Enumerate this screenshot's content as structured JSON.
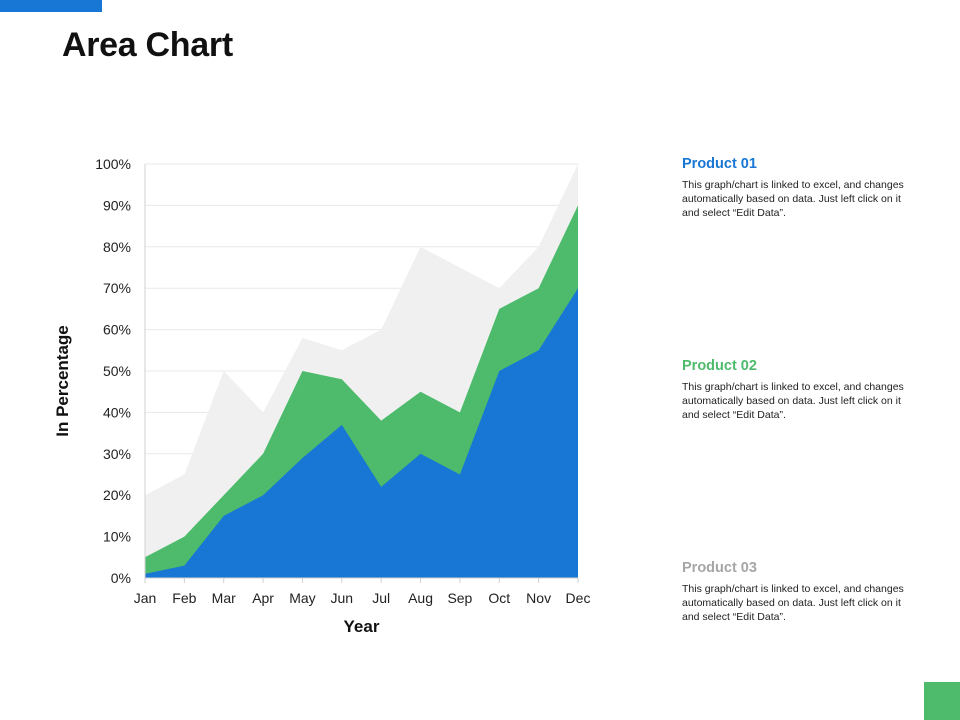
{
  "title": "Area Chart",
  "colors": {
    "accent_blue": "#1877d4",
    "accent_green": "#4dbb6b",
    "product01": "#1877d4",
    "product02": "#4dbb6b",
    "product03": "#f0f0f0",
    "product03_label": "#a6a6a6",
    "gridline": "#e8e8e8",
    "axis": "#d0d0d0"
  },
  "chart_data": {
    "type": "area",
    "stacked": false,
    "categories": [
      "Jan",
      "Feb",
      "Mar",
      "Apr",
      "May",
      "Jun",
      "Jul",
      "Aug",
      "Sep",
      "Oct",
      "Nov",
      "Dec"
    ],
    "series": [
      {
        "name": "Product 03",
        "color": "#f0f0f0",
        "values": [
          20,
          25,
          50,
          40,
          58,
          55,
          60,
          80,
          75,
          70,
          80,
          100
        ]
      },
      {
        "name": "Product 02",
        "color": "#4dbb6b",
        "values": [
          5,
          10,
          20,
          30,
          50,
          48,
          38,
          45,
          40,
          65,
          70,
          90
        ]
      },
      {
        "name": "Product 01",
        "color": "#1877d4",
        "values": [
          1,
          3,
          15,
          20,
          29,
          37,
          22,
          30,
          25,
          50,
          55,
          70
        ]
      }
    ],
    "y_ticks": [
      "0%",
      "10%",
      "20%",
      "30%",
      "40%",
      "50%",
      "60%",
      "70%",
      "80%",
      "90%",
      "100%"
    ],
    "ylim": [
      0,
      100
    ],
    "xlabel": "Year",
    "ylabel": "In Percentage",
    "grid": true,
    "legend": "right"
  },
  "legend_items": [
    {
      "title": "Product 01",
      "color": "#1877d4",
      "description": "This graph/chart is linked to excel, and changes automatically based on data. Just left click on it and select “Edit Data”."
    },
    {
      "title": "Product 02",
      "color": "#4dbb6b",
      "description": "This graph/chart is linked to excel, and changes automatically based on data. Just left click on it and select “Edit Data”."
    },
    {
      "title": "Product 03",
      "color": "#a6a6a6",
      "description": "This graph/chart is linked to excel, and changes automatically based on data. Just left click on it and select “Edit Data”."
    }
  ]
}
